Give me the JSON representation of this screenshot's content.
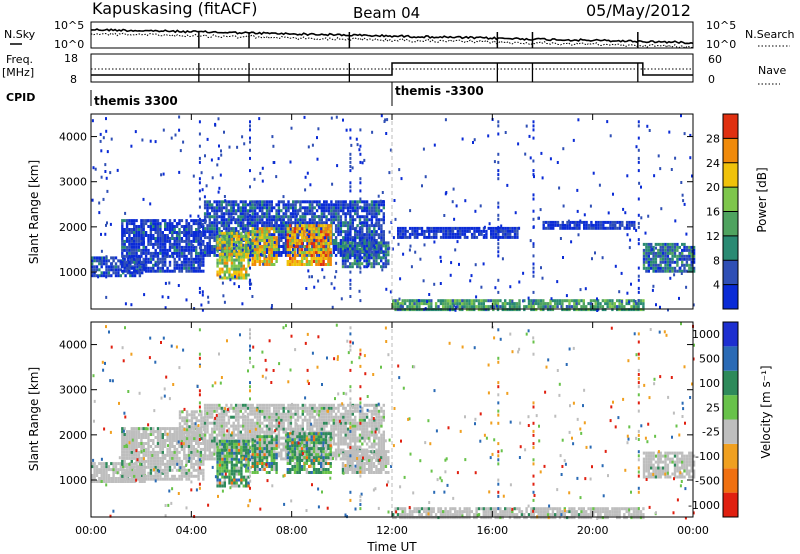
{
  "header": {
    "station": "Kapuskasing (fitACF)",
    "beam": "Beam 04",
    "date": "05/May/2012"
  },
  "top_panels": {
    "nsky": {
      "left_label": "N.Sky",
      "right_label": "N.Search",
      "ticks": [
        "10^5",
        "10^0"
      ]
    },
    "freq": {
      "left_label_line1": "Freq.",
      "left_label_line2": "[MHz]",
      "right_label": "Nave",
      "left_ticks": [
        "18",
        "8"
      ],
      "right_ticks": [
        "60",
        "0"
      ]
    },
    "cpid": {
      "label": "CPID",
      "segments": [
        {
          "name": "themis 3300",
          "start_hour": 0
        },
        {
          "name": "themis -3300",
          "start_hour": 12
        }
      ]
    }
  },
  "x_axis": {
    "label": "Time UT",
    "ticks": [
      "00:00",
      "04:00",
      "08:00",
      "12:00",
      "16:00",
      "20:00",
      "00:00"
    ]
  },
  "chart_data": [
    {
      "type": "heatmap",
      "ylabel": "Slant Range [km]",
      "xlabel": "Time UT",
      "xlim": [
        0,
        24
      ],
      "ylim": [
        180,
        4500
      ],
      "y_ticks": [
        "1000",
        "2000",
        "3000",
        "4000"
      ],
      "colorbar": {
        "label": "Power [dB]",
        "range": [
          0,
          32
        ],
        "ticks": [
          "4",
          "8",
          "12",
          "16",
          "20",
          "24",
          "28"
        ],
        "colors": [
          "#0a2bd6",
          "#2f4fb5",
          "#2a8a73",
          "#4fa35f",
          "#7ec64b",
          "#f0c20a",
          "#f08a0a",
          "#e03010"
        ]
      },
      "regions": [
        {
          "t": [
            0.0,
            2.1
          ],
          "r": [
            950,
            1350
          ],
          "level": 0.15
        },
        {
          "t": [
            1.2,
            4.5
          ],
          "r": [
            1050,
            2200
          ],
          "level": 0.1
        },
        {
          "t": [
            4.5,
            11.7
          ],
          "r": [
            1400,
            2600
          ],
          "level": 0.15
        },
        {
          "t": [
            5.0,
            6.3
          ],
          "r": [
            900,
            1900
          ],
          "level": 0.6
        },
        {
          "t": [
            6.4,
            7.4
          ],
          "r": [
            1200,
            2000
          ],
          "level": 0.7
        },
        {
          "t": [
            7.8,
            9.6
          ],
          "r": [
            1200,
            2100
          ],
          "level": 0.75
        },
        {
          "t": [
            10.0,
            11.9
          ],
          "r": [
            1150,
            1700
          ],
          "level": 0.25
        },
        {
          "t": [
            12.0,
            22.0
          ],
          "r": [
            200,
            420
          ],
          "level": 0.4
        },
        {
          "t": [
            12.2,
            17.0
          ],
          "r": [
            1800,
            2000
          ],
          "level": 0.05
        },
        {
          "t": [
            18.0,
            21.7
          ],
          "r": [
            2000,
            2150
          ],
          "level": 0.05
        },
        {
          "t": [
            22.0,
            24.0
          ],
          "r": [
            1050,
            1650
          ],
          "level": 0.25
        }
      ]
    },
    {
      "type": "heatmap",
      "ylabel": "Slant Range [km]",
      "xlabel": "Time UT",
      "xlim": [
        0,
        24
      ],
      "ylim": [
        180,
        4500
      ],
      "y_ticks": [
        "1000",
        "2000",
        "3000",
        "4000"
      ],
      "colorbar": {
        "label": "Velocity [m s⁻¹]",
        "range": [
          -1000,
          1000
        ],
        "ticks": [
          "1000",
          "500",
          "100",
          "25",
          "-25",
          "-100",
          "-500",
          "-1000"
        ],
        "colors": [
          "#1d2fd0",
          "#2a6ab5",
          "#2e8a5a",
          "#68c24a",
          "#bebebe",
          "#f0a020",
          "#f07010",
          "#e02010"
        ]
      },
      "regions": [
        {
          "t": [
            0.0,
            2.1
          ],
          "r": [
            1000,
            1400
          ],
          "level": 0.5
        },
        {
          "t": [
            1.2,
            4.5
          ],
          "r": [
            1050,
            2200
          ],
          "level": 0.5
        },
        {
          "t": [
            3.5,
            4.5
          ],
          "r": [
            1950,
            2550
          ],
          "level": 0.2
        },
        {
          "t": [
            4.5,
            11.7
          ],
          "r": [
            1500,
            2700
          ],
          "level": 0.5
        },
        {
          "t": [
            5.0,
            6.3
          ],
          "r": [
            900,
            1900
          ],
          "level": 0.75
        },
        {
          "t": [
            6.4,
            7.4
          ],
          "r": [
            1200,
            2000
          ],
          "level": 0.8
        },
        {
          "t": [
            7.8,
            9.6
          ],
          "r": [
            1200,
            2100
          ],
          "level": 0.78
        },
        {
          "t": [
            10.0,
            11.9
          ],
          "r": [
            1200,
            1700
          ],
          "level": 0.5
        },
        {
          "t": [
            12.0,
            22.0
          ],
          "r": [
            200,
            420
          ],
          "level": 0.5
        },
        {
          "t": [
            22.0,
            24.0
          ],
          "r": [
            1100,
            1650
          ],
          "level": 0.5
        }
      ]
    }
  ]
}
